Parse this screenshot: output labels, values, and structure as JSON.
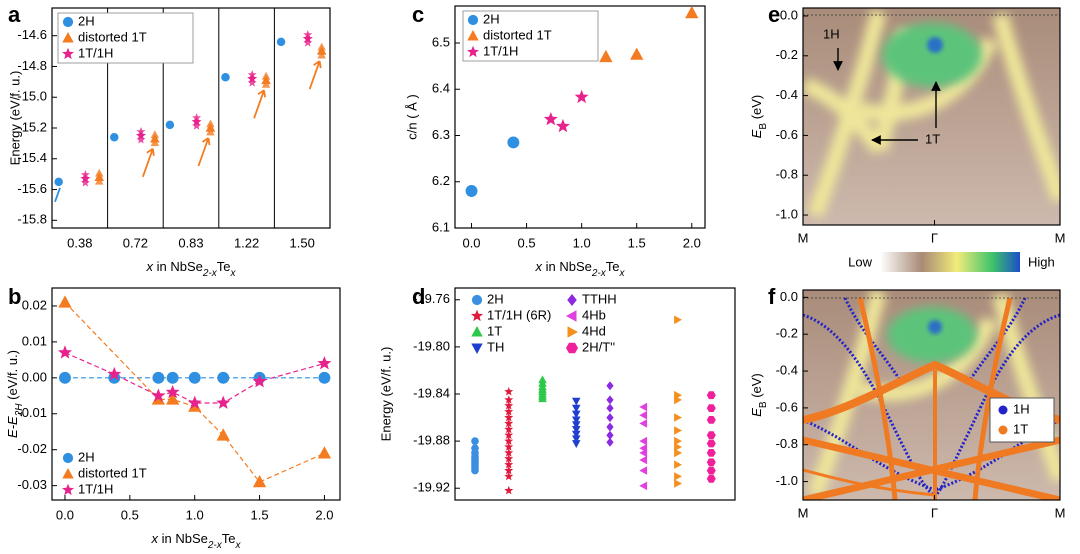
{
  "chart_data": [
    {
      "type": "categorical-scatter",
      "panel": "a",
      "ylabel": "Energy (eV/f. u.)",
      "xlabel": [
        "x",
        " in NbSe",
        "2-x",
        "Te",
        "x"
      ],
      "categories": [
        "0.38",
        "0.72",
        "0.83",
        "1.22",
        "1.50"
      ],
      "ylim": [
        -15.85,
        -14.42
      ],
      "yticks": [
        -14.6,
        -14.8,
        {
          "value": -15,
          "label": "-15.0"
        },
        -15.2,
        -15.4,
        -15.6,
        -15.8
      ],
      "series": [
        {
          "name": "2H",
          "color": "#2f8fe0",
          "marker": "circle",
          "values": [
            -15.55,
            -15.26,
            -15.18,
            -14.87,
            -14.64
          ]
        },
        {
          "name": "distorted 1T",
          "color": "#f47b20",
          "marker": "triangle",
          "values": [
            -15.52,
            -15.27,
            -15.2,
            -14.89,
            -14.7
          ]
        },
        {
          "name": "1T/1H",
          "color": "#e8228c",
          "marker": "star",
          "values": [
            -15.53,
            -15.25,
            -15.16,
            -14.88,
            -14.62
          ]
        }
      ]
    },
    {
      "type": "scatter",
      "panel": "b",
      "ylabel": [
        "E-E",
        "2H",
        " (eV/f. u.)"
      ],
      "xlabel": [
        "x",
        " in NbSe",
        "2-x",
        "Te",
        "x"
      ],
      "xlim": [
        -0.1,
        2.12
      ],
      "ylim": [
        -0.034,
        0.025
      ],
      "xticks": [
        {
          "value": 0,
          "label": "0.0"
        },
        {
          "value": 0.5,
          "label": "0.5"
        },
        {
          "value": 1,
          "label": "1.0"
        },
        {
          "value": 1.5,
          "label": "1.5"
        },
        {
          "value": 2,
          "label": "2.0"
        }
      ],
      "yticks": [
        0.02,
        0.01,
        {
          "value": 0,
          "label": "0.00"
        },
        -0.01,
        -0.02,
        -0.03
      ],
      "series": [
        {
          "name": "2H",
          "color": "#2f8fe0",
          "marker": "circle",
          "linestyle": "dashed",
          "x": [
            0,
            0.38,
            0.72,
            0.83,
            1.0,
            1.22,
            1.5,
            2.0
          ],
          "values": [
            0,
            0,
            0,
            0,
            0,
            0,
            0,
            0
          ]
        },
        {
          "name": "distorted 1T",
          "color": "#f47b20",
          "marker": "triangle",
          "linestyle": "dashed",
          "x": [
            0,
            0.72,
            0.83,
            1.0,
            1.22,
            1.5,
            2.0
          ],
          "values": [
            0.021,
            -0.006,
            -0.006,
            -0.008,
            -0.016,
            -0.029,
            -0.021
          ]
        },
        {
          "name": "1T/1H",
          "color": "#e8228c",
          "marker": "star",
          "linestyle": "dashed",
          "x": [
            0,
            0.38,
            0.72,
            0.83,
            1.0,
            1.22,
            1.5,
            2.0
          ],
          "values": [
            0.007,
            0.001,
            -0.005,
            -0.004,
            -0.007,
            -0.007,
            -0.001,
            0.004
          ]
        }
      ]
    },
    {
      "type": "scatter",
      "panel": "c",
      "ylabel": "c/n ( Å )",
      "xlabel": [
        "x",
        " in NbSe",
        "2-x",
        "Te",
        "x"
      ],
      "xlim": [
        -0.15,
        2.12
      ],
      "ylim": [
        6.1,
        6.58
      ],
      "xticks": [
        {
          "value": 0,
          "label": "0.0"
        },
        {
          "value": 0.5,
          "label": "0.5"
        },
        {
          "value": 1,
          "label": "1.0"
        },
        {
          "value": 1.5,
          "label": "1.5"
        },
        {
          "value": 2,
          "label": "2.0"
        }
      ],
      "yticks": [
        6.1,
        6.2,
        6.3,
        6.4,
        6.5
      ],
      "series": [
        {
          "name": "2H",
          "color": "#2f8fe0",
          "marker": "circle",
          "x": [
            0,
            0.38
          ],
          "values": [
            6.18,
            6.285
          ]
        },
        {
          "name": "distorted 1T",
          "color": "#f47b20",
          "marker": "triangle",
          "x": [
            1.22,
            1.5,
            2.0
          ],
          "values": [
            6.47,
            6.475,
            6.565
          ]
        },
        {
          "name": "1T/1H",
          "color": "#e8228c",
          "marker": "star",
          "x": [
            0.72,
            0.83,
            1.0
          ],
          "values": [
            6.335,
            6.32,
            6.383
          ]
        }
      ]
    },
    {
      "type": "strip",
      "panel": "d",
      "ylabel": "Energy (eV/f. u.)",
      "ylim": [
        -19.93,
        -19.75
      ],
      "yticks": [
        -19.76,
        {
          "value": -19.8,
          "label": "-19.80"
        },
        -19.84,
        -19.88,
        -19.92
      ],
      "series": [
        {
          "name": "2H",
          "color": "#3a8fe0",
          "marker": "circle",
          "values": [
            -19.88,
            -19.886,
            -19.89,
            -19.893,
            -19.895,
            -19.897,
            -19.899,
            -19.901,
            -19.903,
            -19.905
          ]
        },
        {
          "name": "1T/1H (6R)",
          "color": "#e01a3c",
          "marker": "star",
          "values": [
            -19.838,
            -19.845,
            -19.85,
            -19.855,
            -19.86,
            -19.865,
            -19.87,
            -19.875,
            -19.88,
            -19.885,
            -19.89,
            -19.895,
            -19.9,
            -19.905,
            -19.91,
            -19.922
          ]
        },
        {
          "name": "1T",
          "color": "#2ec84a",
          "marker": "triangle",
          "values": [
            -19.828,
            -19.831,
            -19.834,
            -19.836,
            -19.838,
            -19.84,
            -19.842,
            -19.844
          ]
        },
        {
          "name": "TH",
          "color": "#1f3fd0",
          "marker": "tdown",
          "values": [
            -19.846,
            -19.852,
            -19.857,
            -19.862,
            -19.866,
            -19.87,
            -19.874,
            -19.878,
            -19.882
          ]
        },
        {
          "name": "TTHH",
          "color": "#8a2be2",
          "marker": "diamond",
          "values": [
            -19.833,
            -19.845,
            -19.852,
            -19.86,
            -19.868,
            -19.875,
            -19.881
          ]
        },
        {
          "name": "4Hb",
          "color": "#e040e0",
          "marker": "tleft",
          "values": [
            -19.851,
            -19.858,
            -19.865,
            -19.88,
            -19.886,
            -19.89,
            -19.896,
            -19.905,
            -19.918
          ]
        },
        {
          "name": "4Hd",
          "color": "#f5901e",
          "marker": "tright",
          "values": [
            -19.777,
            -19.841,
            -19.845,
            -19.86,
            -19.871,
            -19.88,
            -19.885,
            -19.89,
            -19.9,
            -19.91,
            -19.916
          ]
        },
        {
          "name": "2H/T''",
          "color": "#f0209a",
          "marker": "hexagon",
          "values": [
            -19.841,
            -19.852,
            -19.862,
            -19.875,
            -19.882,
            -19.89,
            -19.898,
            -19.905,
            -19.912
          ]
        }
      ]
    },
    {
      "type": "heatmap",
      "panel": "e",
      "ylabel": [
        "E",
        "B",
        " (eV)"
      ],
      "xticklabels": [
        "M",
        "Γ",
        "M"
      ],
      "ylim": [
        -1.05,
        0.04
      ],
      "yticks": [
        {
          "value": 0,
          "label": "0.0"
        },
        -0.2,
        -0.4,
        -0.6,
        -0.8,
        {
          "value": -1,
          "label": "-1.0"
        }
      ],
      "annotations": [
        "1H",
        "1T"
      ],
      "colorbar": [
        "Low",
        "High"
      ]
    },
    {
      "type": "heatmap",
      "panel": "f",
      "ylabel": [
        "E",
        "B",
        " (eV)"
      ],
      "xticklabels": [
        "M",
        "Γ",
        "M"
      ],
      "ylim": [
        -1.1,
        0.04
      ],
      "yticks": [
        {
          "value": 0,
          "label": "0.0"
        },
        -0.2,
        -0.4,
        -0.6,
        -0.8,
        {
          "value": -1,
          "label": "-1.0"
        }
      ],
      "series": [
        {
          "name": "1H",
          "color": "#2222c8"
        },
        {
          "name": "1T",
          "color": "#f07a22"
        }
      ]
    }
  ]
}
